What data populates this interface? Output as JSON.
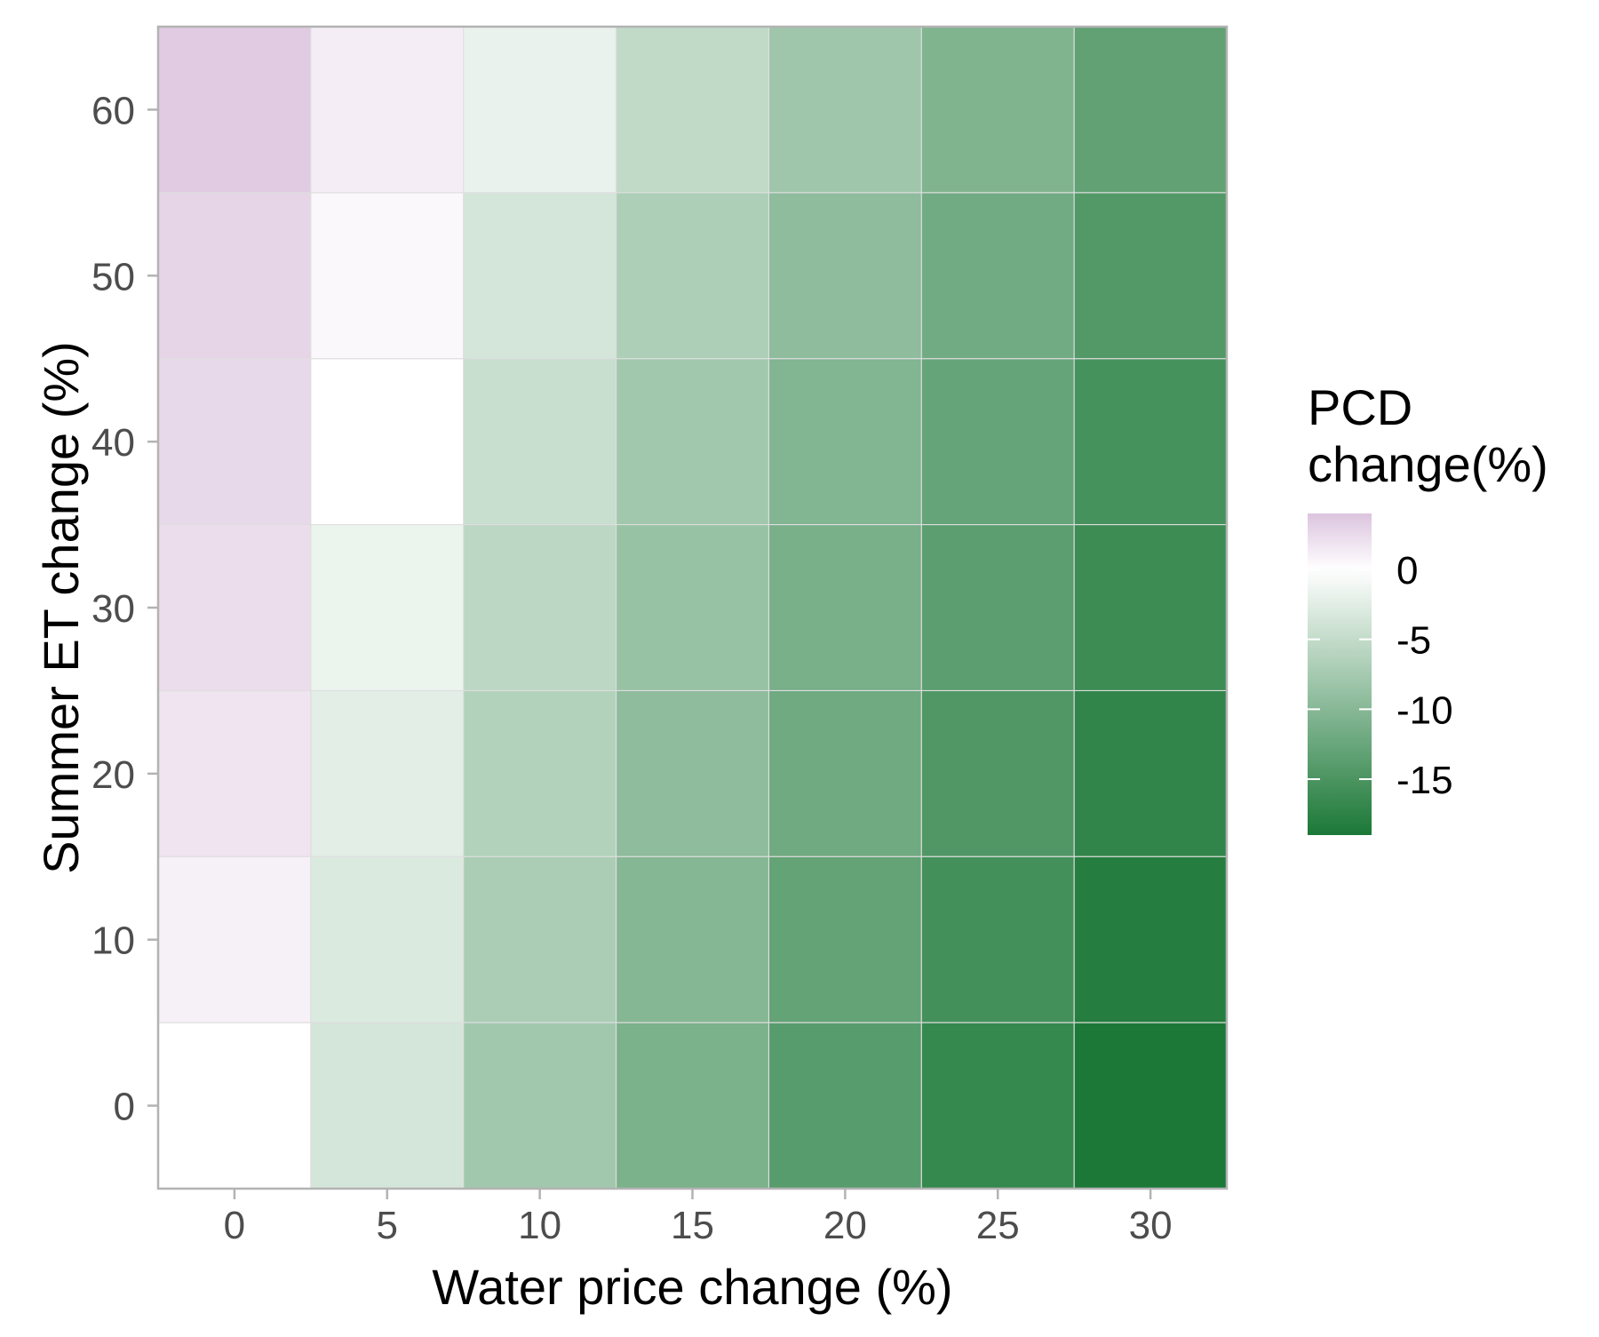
{
  "chart_data": {
    "type": "heatmap",
    "xlabel": "Water price change (%)",
    "ylabel": "Summer ET change (%)",
    "x": [
      0,
      5,
      10,
      15,
      20,
      25,
      30
    ],
    "y": [
      0,
      10,
      20,
      30,
      40,
      50,
      60
    ],
    "x_tick_labels": [
      "0",
      "5",
      "10",
      "15",
      "20",
      "25",
      "30"
    ],
    "y_tick_labels": [
      "0",
      "10",
      "20",
      "30",
      "40",
      "50",
      "60"
    ],
    "xlim": [
      -2.5,
      32.5
    ],
    "ylim": [
      -5,
      65
    ],
    "values": [
      [
        0.0,
        -3.6,
        -7.8,
        -11.0,
        -14.0,
        -16.8,
        -19.0
      ],
      [
        1.0,
        -3.0,
        -7.0,
        -10.2,
        -13.0,
        -15.6,
        -18.2
      ],
      [
        1.8,
        -2.4,
        -6.4,
        -9.4,
        -12.0,
        -14.6,
        -17.2
      ],
      [
        2.3,
        -1.6,
        -5.6,
        -8.6,
        -11.2,
        -13.6,
        -16.2
      ],
      [
        2.6,
        0.0,
        -4.6,
        -7.8,
        -10.4,
        -12.8,
        -15.4
      ],
      [
        2.9,
        0.5,
        -3.6,
        -6.8,
        -9.4,
        -11.8,
        -14.4
      ],
      [
        3.5,
        1.2,
        -1.8,
        -5.2,
        -8.0,
        -10.6,
        -13.2
      ]
    ],
    "colorbar": {
      "title_lines": [
        "PCD",
        "change(%)"
      ],
      "domain": [
        -19,
        4
      ],
      "ticks": [
        0,
        -5,
        -10,
        -15
      ],
      "tick_labels": [
        "0",
        "-5",
        "-10",
        "-15"
      ],
      "colors": {
        "low": "#1b7837",
        "mid": "#ffffff",
        "high": "#dcc4de"
      }
    },
    "grid": true,
    "legend_placement": "right",
    "panel_border_color": "#b3b3b3"
  }
}
